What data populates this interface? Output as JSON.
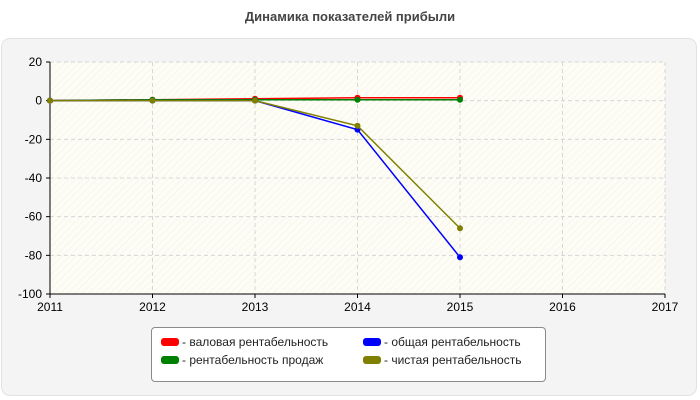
{
  "chart_data": {
    "type": "line",
    "title": "Динамика показателей прибыли",
    "xlabel": "",
    "ylabel": "",
    "xlim": [
      2011,
      2017
    ],
    "ylim": [
      -100,
      20
    ],
    "x_ticks": [
      "2011",
      "2012",
      "2013",
      "2014",
      "2015",
      "2016",
      "2017"
    ],
    "y_ticks": [
      "20",
      "0",
      "-20",
      "-40",
      "-60",
      "-80",
      "-100"
    ],
    "grid": true,
    "legend_position": "bottom",
    "series": [
      {
        "name": "- валовая рентабельность",
        "color": "#ff0000",
        "x": [
          2011,
          2012,
          2013,
          2014,
          2015
        ],
        "values": [
          0,
          0.5,
          1,
          1.5,
          1.5
        ]
      },
      {
        "name": "- рентабельность продаж",
        "color": "#008000",
        "x": [
          2011,
          2012,
          2013,
          2014,
          2015
        ],
        "values": [
          0,
          0.5,
          0.5,
          0.5,
          0.5
        ]
      },
      {
        "name": "- общая рентабельность",
        "color": "#0000ff",
        "x": [
          2011,
          2012,
          2013,
          2014,
          2015
        ],
        "values": [
          0,
          0,
          0,
          -15,
          -81
        ]
      },
      {
        "name": "- чистая рентабельность",
        "color": "#808000",
        "x": [
          2011,
          2012,
          2013,
          2014,
          2015
        ],
        "values": [
          0,
          0,
          0,
          -13,
          -66
        ]
      }
    ]
  }
}
